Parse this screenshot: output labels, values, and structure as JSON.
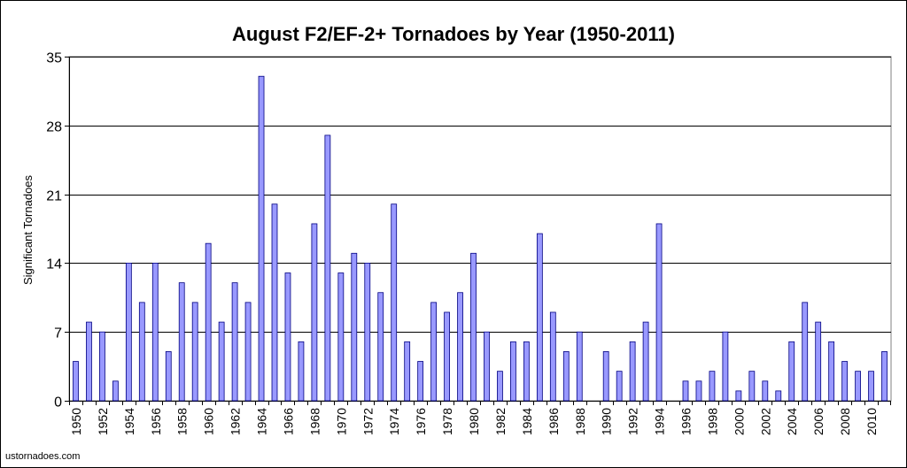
{
  "chart_data": {
    "type": "bar",
    "title": "August F2/EF-2+ Tornadoes by Year (1950-2011)",
    "xlabel": "",
    "ylabel": "Significant Tornadoes",
    "ylim": [
      0,
      35
    ],
    "yticks": [
      0,
      7,
      14,
      21,
      28,
      35
    ],
    "grid": true,
    "legend": "none",
    "bar_color": "#9999ff",
    "bar_border_color": "#000080",
    "categories": [
      "1950",
      "1951",
      "1952",
      "1953",
      "1954",
      "1955",
      "1956",
      "1957",
      "1958",
      "1959",
      "1960",
      "1961",
      "1962",
      "1963",
      "1964",
      "1965",
      "1966",
      "1967",
      "1968",
      "1969",
      "1970",
      "1971",
      "1972",
      "1973",
      "1974",
      "1975",
      "1976",
      "1977",
      "1978",
      "1979",
      "1980",
      "1981",
      "1982",
      "1983",
      "1984",
      "1985",
      "1986",
      "1987",
      "1988",
      "1989",
      "1990",
      "1991",
      "1992",
      "1993",
      "1994",
      "1995",
      "1996",
      "1997",
      "1998",
      "1999",
      "2000",
      "2001",
      "2002",
      "2003",
      "2004",
      "2005",
      "2006",
      "2007",
      "2008",
      "2009",
      "2010",
      "2011"
    ],
    "tick_labels": [
      "1950",
      "1952",
      "1954",
      "1956",
      "1958",
      "1960",
      "1962",
      "1964",
      "1966",
      "1968",
      "1970",
      "1972",
      "1974",
      "1976",
      "1978",
      "1980",
      "1982",
      "1984",
      "1986",
      "1988",
      "1990",
      "1992",
      "1994",
      "1996",
      "1998",
      "2000",
      "2002",
      "2004",
      "2006",
      "2008",
      "2010"
    ],
    "values": [
      4,
      8,
      7,
      2,
      14,
      10,
      14,
      5,
      12,
      10,
      16,
      8,
      12,
      10,
      33,
      20,
      13,
      6,
      18,
      27,
      13,
      15,
      14,
      11,
      20,
      6,
      4,
      10,
      9,
      11,
      15,
      7,
      3,
      6,
      6,
      17,
      9,
      5,
      7,
      0,
      5,
      3,
      6,
      8,
      18,
      0,
      2,
      2,
      3,
      7,
      1,
      3,
      2,
      1,
      6,
      10,
      8,
      6,
      4,
      3,
      3,
      5
    ]
  },
  "source_credit": "ustornadoes.com"
}
